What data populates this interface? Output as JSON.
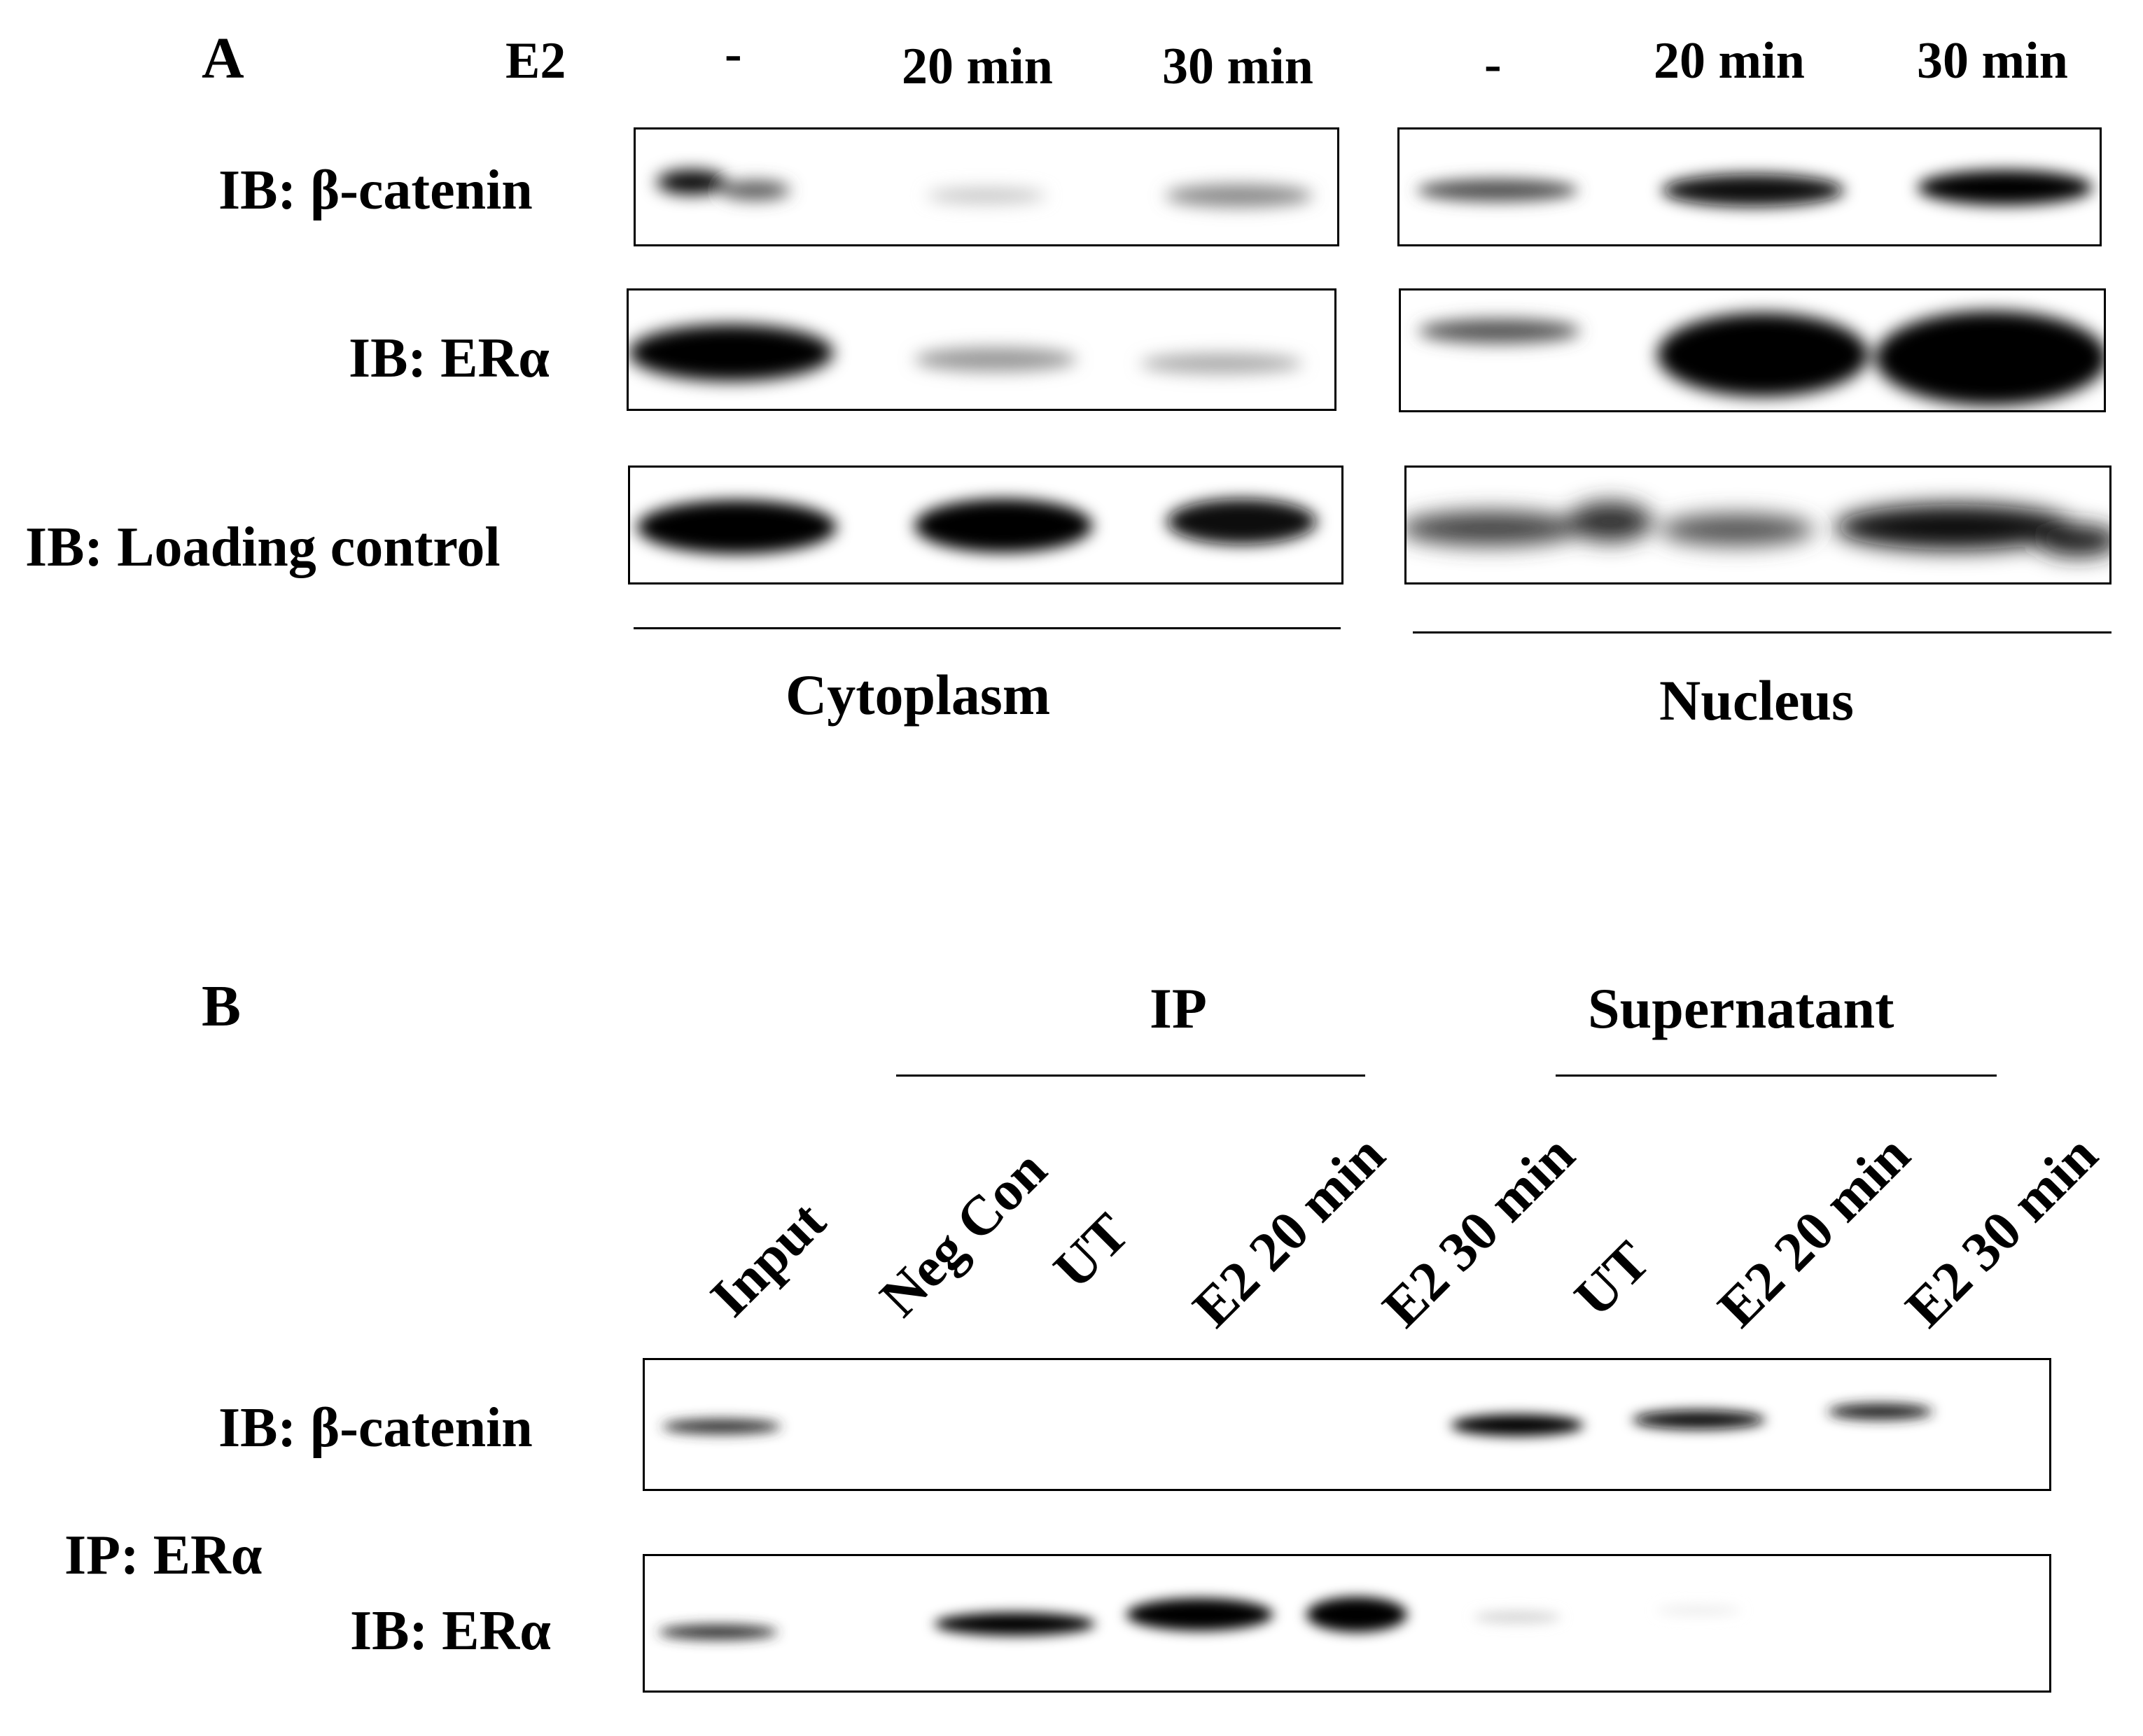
{
  "panel_a": {
    "letter": "A",
    "treatment_label": "E2",
    "lanes_cytoplasm": [
      "-",
      "20 min",
      "30 min"
    ],
    "lanes_nucleus": [
      "-",
      "20 min",
      "30 min"
    ],
    "rows": [
      "IB: β-catenin",
      "IB: ERα",
      "IB: Loading control"
    ],
    "compartments": [
      "Cytoplasm",
      "Nucleus"
    ]
  },
  "panel_b": {
    "letter": "B",
    "group_ip": "IP",
    "group_supernatant": "Supernatant",
    "lanes": [
      "Input",
      "Neg Con",
      "UT",
      "E2 20 min",
      "E2 30 min",
      "UT",
      "E2 20 min",
      "E2 30 min"
    ],
    "row_beta_catenin": "IB: β-catenin",
    "ip_label": "IP: ERα",
    "row_er_alpha": "IB: ERα"
  }
}
